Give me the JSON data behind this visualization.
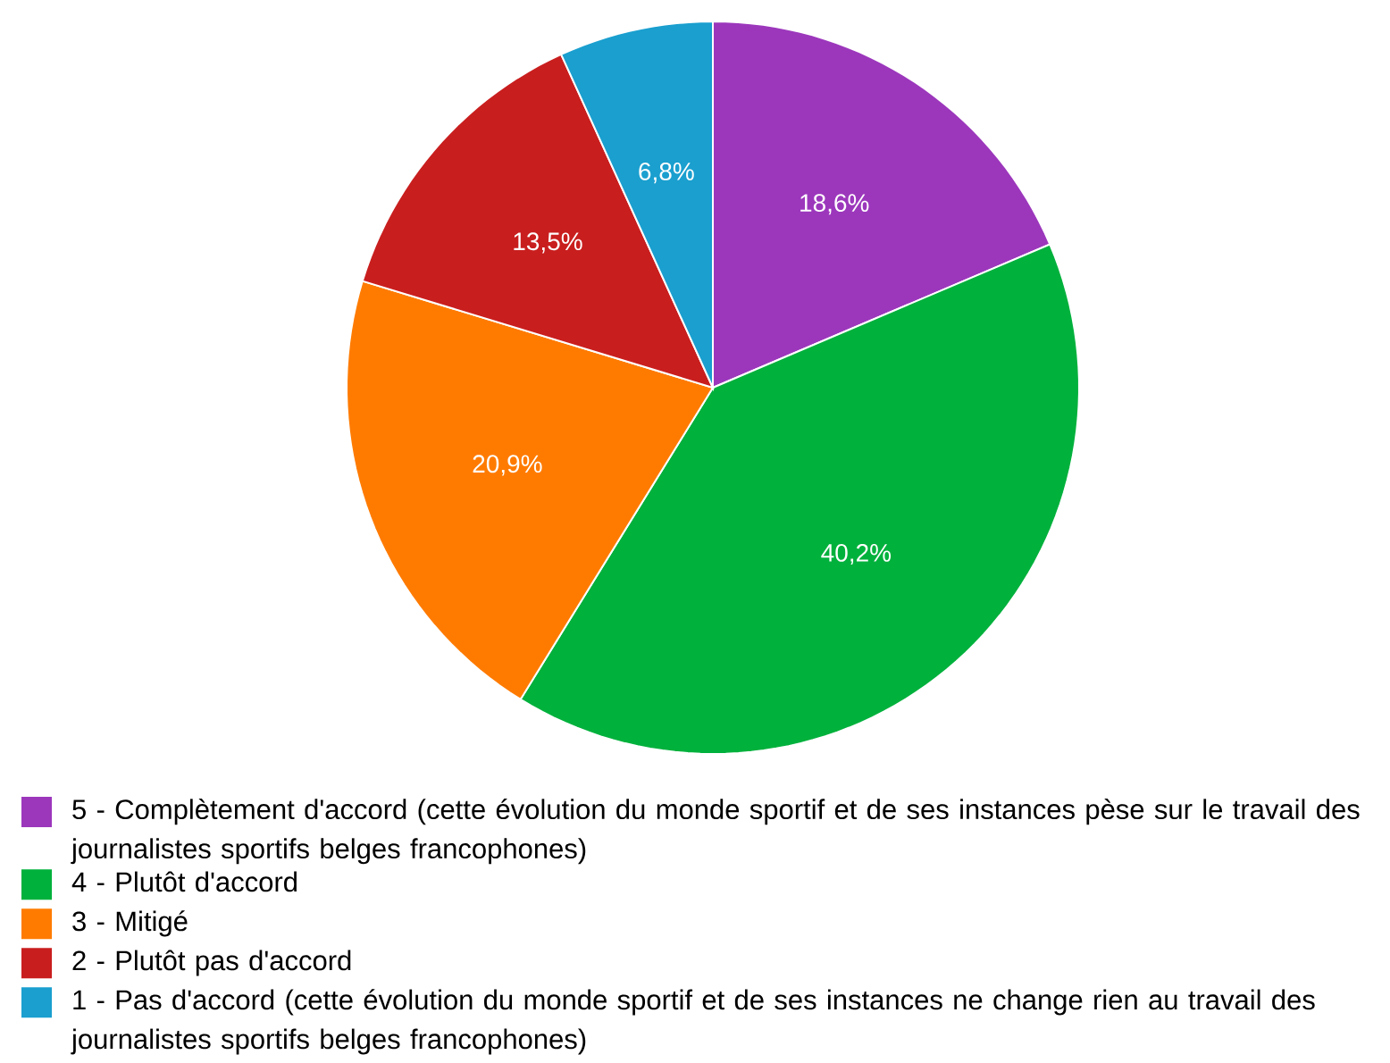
{
  "chart_data": {
    "type": "pie",
    "categories": [
      "5 - Complètement d'accord (cette évolution du monde sportif et de ses instances pèse sur le travail des journalistes sportifs belges francophones)",
      "4 - Plutôt d'accord",
      "3 - Mitigé",
      "2 - Plutôt pas d'accord",
      "1 - Pas d'accord (cette évolution du monde sportif et de ses instances ne change rien au travail des journalistes sportifs belges francophones)"
    ],
    "values": [
      18.6,
      40.2,
      20.9,
      13.5,
      6.8
    ],
    "value_labels": [
      "18,6%",
      "40,2%",
      "20,9%",
      "13,5%",
      "6,8%"
    ],
    "colors": [
      "#9c37bc",
      "#00b13c",
      "#ff7b00",
      "#c91e1e",
      "#1a9fcf"
    ],
    "legend": "bottom"
  }
}
